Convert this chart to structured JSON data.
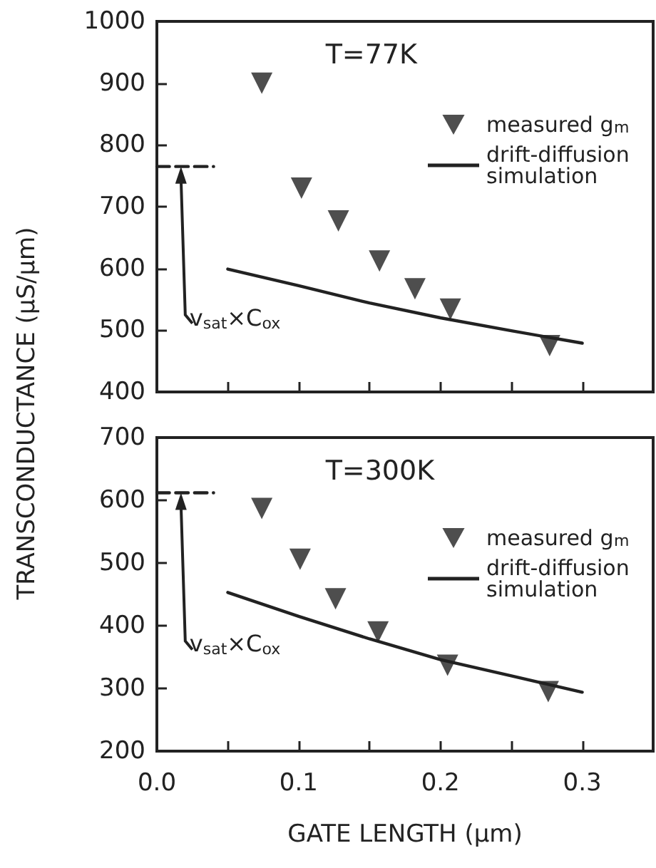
{
  "chart_data": [
    {
      "type": "scatter",
      "ylabel": "TRANSCONDUCTANCE (μS/μm)",
      "xlim": [
        0,
        0.35
      ],
      "xticks": [
        {
          "value": 0,
          "label": null
        },
        {
          "value": 0.05,
          "label": null
        },
        {
          "value": 0.1,
          "label": null
        },
        {
          "value": 0.15,
          "label": null
        },
        {
          "value": 0.2,
          "label": null
        },
        {
          "value": 0.25,
          "label": null
        },
        {
          "value": 0.3,
          "label": null
        }
      ],
      "ylim": [
        400,
        1000
      ],
      "yticks": [
        400,
        500,
        600,
        700,
        800,
        900,
        1000
      ],
      "tick_labels": "y",
      "legend": "top right",
      "grid": false,
      "annotations": [
        "T=77K",
        {
          "text": "v$_{sat}$×C$_{ox}$",
          "x": 0.017,
          "y": 765
        }
      ],
      "series": [
        {
          "name": "measured g$_{m}$",
          "marker": "triangle",
          "color": "#222222",
          "x": [
            0.074,
            0.102,
            0.128,
            0.157,
            0.182,
            0.207,
            0.277
          ],
          "values": [
            900,
            730,
            677,
            612,
            567,
            534,
            475
          ]
        },
        {
          "name": "drift-diffusion simulation",
          "type": "line",
          "marker": "none",
          "line_style": "solid",
          "color": "#222222",
          "x": [
            0.05,
            0.1,
            0.15,
            0.2,
            0.25,
            0.3
          ],
          "values": [
            599,
            572,
            544,
            520,
            499,
            479
          ]
        },
        {
          "type": "line",
          "marker": "none",
          "line_style": "dashed",
          "color": "#222222",
          "x": [
            0,
            0.04
          ],
          "values": [
            765,
            765
          ]
        }
      ]
    },
    {
      "type": "scatter",
      "xlabel": "GATE LENGTH (μm)",
      "xlim": [
        0,
        0.35
      ],
      "xticks": [
        {
          "value": 0,
          "label": "0.0"
        },
        {
          "value": 0.05,
          "label": null
        },
        0.1,
        {
          "value": 0.15,
          "label": null
        },
        0.2,
        {
          "value": 0.25,
          "label": null
        },
        0.3
      ],
      "ylim": [
        200,
        700
      ],
      "yticks": [
        200,
        300,
        400,
        500,
        600,
        700
      ],
      "legend": "top right",
      "grid": false,
      "annotations": [
        "T=300K",
        {
          "text": "v$_{sat}$×C$_{ox}$",
          "x": 0.017,
          "y": 612
        }
      ],
      "series": [
        {
          "name": "measured g$_{m}$",
          "marker": "triangle",
          "color": "#222222",
          "x": [
            0.074,
            0.101,
            0.126,
            0.156,
            0.205,
            0.276
          ],
          "values": [
            587,
            506,
            443,
            390,
            337,
            295
          ]
        },
        {
          "name": "drift-diffusion simulation",
          "type": "line",
          "marker": "none",
          "line_style": "solid",
          "color": "#222222",
          "x": [
            0.05,
            0.1,
            0.15,
            0.2,
            0.25,
            0.3
          ],
          "values": [
            453,
            415,
            379,
            346,
            320,
            294
          ]
        },
        {
          "type": "line",
          "marker": "none",
          "line_style": "dashed",
          "color": "#222222",
          "x": [
            0,
            0.04
          ],
          "values": [
            612,
            612
          ]
        }
      ]
    }
  ]
}
